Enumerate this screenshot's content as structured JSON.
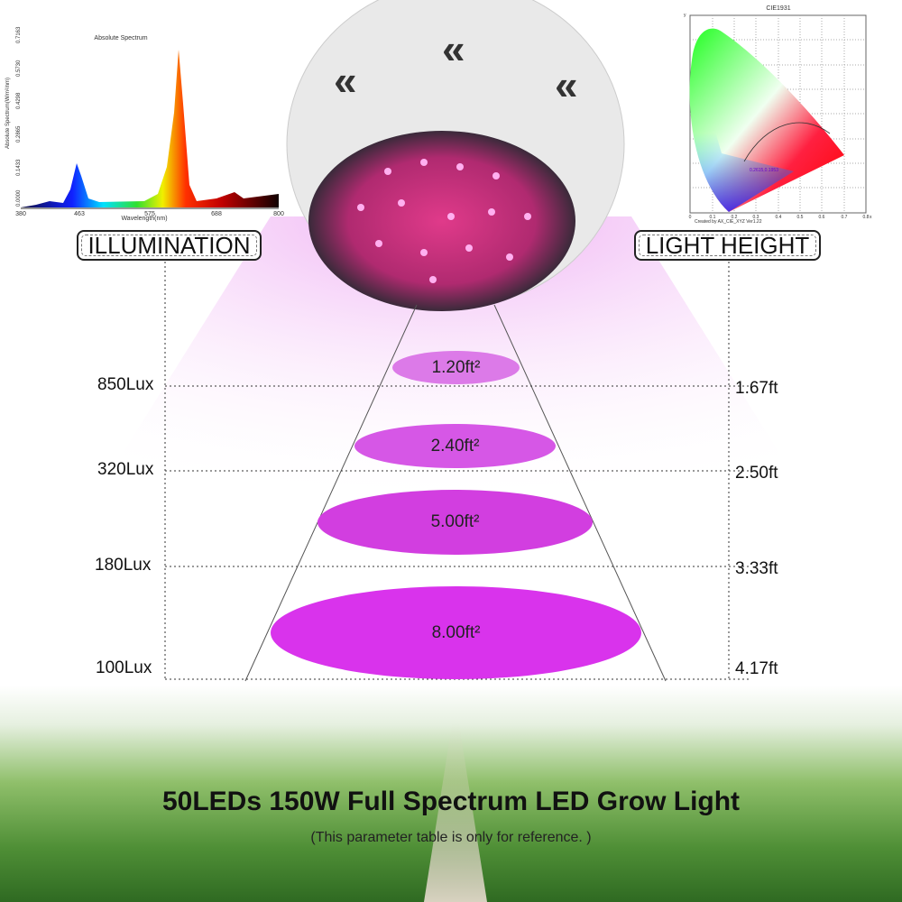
{
  "spectrum_chart": {
    "title": "Absolute Spectrum",
    "xlabel": "Wavelength(nm)",
    "ylabel": "Absolute Spectrum(W/m²/nm)",
    "x_ticks": [
      "380",
      "463",
      "575",
      "688",
      "800"
    ],
    "y_ticks": [
      "0.0000",
      "0.1433",
      "0.2865",
      "0.4298",
      "0.5730",
      "0.7163"
    ]
  },
  "cie_chart": {
    "title": "CIE1931",
    "xlabel": "x",
    "ylabel": "y",
    "point_label": "0.2615,0.1953",
    "credit": "Created by AX_CIE_XYZ Ver1.22",
    "ticks": [
      "0",
      "0.1",
      "0.2",
      "0.3",
      "0.4",
      "0.5",
      "0.6",
      "0.7",
      "0.8"
    ]
  },
  "labels": {
    "illumination": "ILLUMINATION",
    "light_height": "LIGHT HEIGHT"
  },
  "levels": [
    {
      "lux": "850Lux",
      "height": "1.67ft",
      "area": "1.20ft²"
    },
    {
      "lux": "320Lux",
      "height": "2.50ft",
      "area": "2.40ft²"
    },
    {
      "lux": "180Lux",
      "height": "3.33ft",
      "area": "5.00ft²"
    },
    {
      "lux": "100Lux",
      "height": "4.17ft",
      "area": "8.00ft²"
    }
  ],
  "title": "50LEDs 150W Full Spectrum LED Grow Light",
  "subtitle": "(This parameter table is only for reference. )",
  "colors": {
    "beam": "#d23ee0",
    "lamp_body": "#e9e9e9"
  }
}
